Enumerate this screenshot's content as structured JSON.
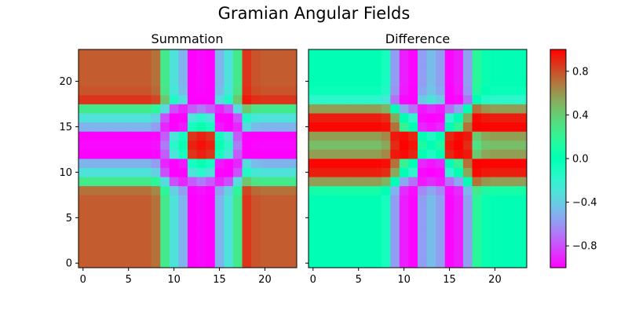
{
  "figure": {
    "title": "Gramian Angular Fields"
  },
  "chart_data": [
    {
      "type": "heatmap",
      "title": "Summation",
      "size": 24,
      "x_ticks": [
        0,
        5,
        10,
        15,
        20
      ],
      "y_ticks": [
        0,
        5,
        10,
        15,
        20
      ],
      "xlim": [
        -0.5,
        23.5
      ],
      "ylim": [
        -0.5,
        23.5
      ],
      "colormap": "rainbow",
      "grid": false,
      "kind": "summation"
    },
    {
      "type": "heatmap",
      "title": "Difference",
      "size": 24,
      "x_ticks": [
        0,
        5,
        10,
        15,
        20
      ],
      "y_ticks": [
        0,
        5,
        10,
        15,
        20
      ],
      "y_tick_labels_shown": false,
      "xlim": [
        -0.5,
        23.5
      ],
      "ylim": [
        -0.5,
        23.5
      ],
      "colormap": "rainbow",
      "grid": false,
      "kind": "difference"
    }
  ],
  "colorbar": {
    "vmin": -1.0,
    "vmax": 1.0,
    "ticks": [
      -0.8,
      -0.4,
      0.0,
      0.4,
      0.8
    ],
    "tick_labels": [
      "−0.8",
      "−0.4",
      "0.0",
      "0.4",
      "0.8"
    ]
  },
  "series": {
    "angles_deg": [
      20,
      20,
      20,
      20,
      20,
      20,
      20,
      20,
      25,
      55,
      88,
      100,
      165,
      172,
      165,
      100,
      88,
      55,
      10,
      18,
      20,
      20,
      20,
      20
    ]
  }
}
